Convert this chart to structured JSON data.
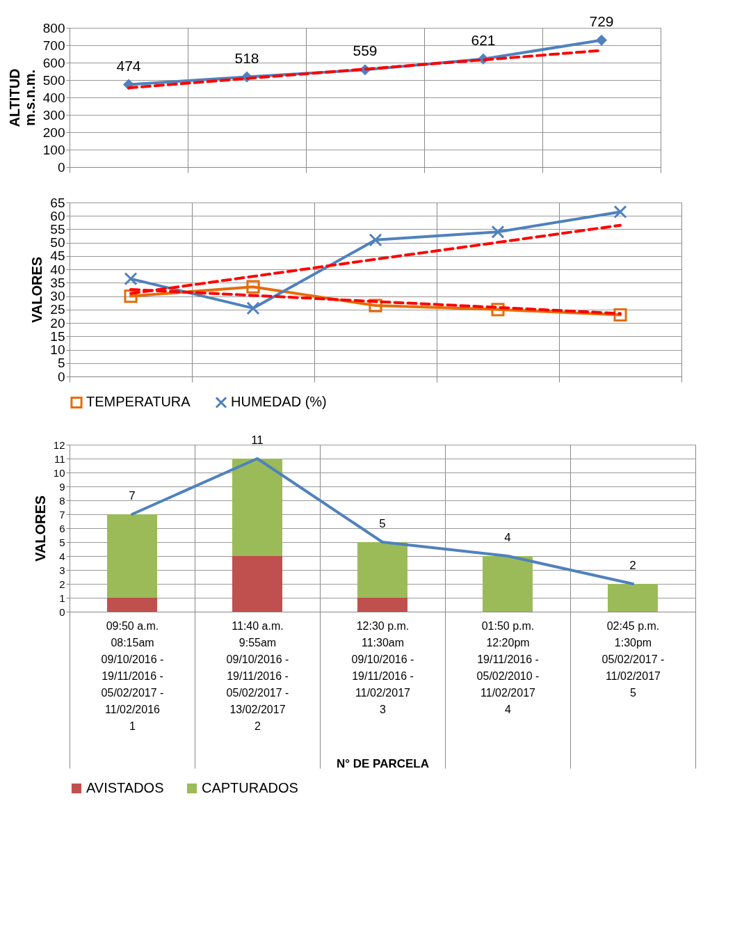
{
  "chart_data": [
    {
      "type": "line",
      "ylabel": "ALTITUD\nm.s.n.m.",
      "categories": [
        null,
        null,
        null,
        null,
        null
      ],
      "ylim": [
        0,
        800
      ],
      "yticks": [
        0,
        100,
        200,
        300,
        400,
        500,
        600,
        700,
        800
      ],
      "grid": true,
      "series": [
        {
          "color": "#4f81bd",
          "values": [
            474,
            518,
            559,
            621,
            729
          ],
          "marker": "diamond",
          "data_labels": true
        },
        {
          "color": "#ff0000",
          "values": [
            455,
            509,
            563,
            616,
            670
          ],
          "marker": "none",
          "line_style": "dashed"
        }
      ]
    },
    {
      "type": "line",
      "ylabel": "VALORES",
      "categories": [
        null,
        null,
        null,
        null,
        null
      ],
      "ylim": [
        0,
        65
      ],
      "yticks": [
        0,
        5,
        10,
        15,
        20,
        25,
        30,
        35,
        40,
        45,
        50,
        55,
        60,
        65
      ],
      "grid": true,
      "legend": "bottom",
      "series": [
        {
          "name": "TEMPERATURA",
          "color": "#e46c0a",
          "values": [
            30,
            33.5,
            26.5,
            25,
            23
          ],
          "marker": "square"
        },
        {
          "name": "HUMEDAD (%)",
          "color": "#4f81bd",
          "values": [
            36.5,
            25.5,
            51,
            54,
            61.5
          ],
          "marker": "cross"
        },
        {
          "color": "#ff0000",
          "values": [
            31,
            37.4,
            43.8,
            50.1,
            56.5
          ],
          "marker": "none",
          "line_style": "dashed"
        },
        {
          "color": "#ff0000",
          "values": [
            32.5,
            30.3,
            28,
            25.8,
            23.5
          ],
          "marker": "none",
          "line_style": "dashed"
        }
      ]
    },
    {
      "type": "bar",
      "stacked": true,
      "ylabel": "VALORES",
      "xlabel": "N° DE PARCELA",
      "categories": [
        "09:50 a.m.\n08:15am\n09/10/2016 -\n19/11/2016 -\n05/02/2017 -\n11/02/2016\n1",
        "11:40 a.m.\n9:55am\n09/10/2016 -\n19/11/2016 -\n05/02/2017 -\n13/02/2017\n2",
        "12:30 p.m.\n11:30am\n09/10/2016 -\n19/11/2016 -\n11/02/2017\n\n3",
        "01:50 p.m.\n12:20pm\n19/11/2016 -\n05/02/2010 -\n11/02/2017\n\n4",
        "02:45 p.m.\n1:30pm\n05/02/2017 -\n11/02/2017\n\n\n5"
      ],
      "ylim": [
        0,
        12
      ],
      "yticks": [
        0,
        1,
        2,
        3,
        4,
        5,
        6,
        7,
        8,
        9,
        10,
        11,
        12
      ],
      "grid": true,
      "legend": "bottom",
      "series": [
        {
          "name": "AVISTADOS",
          "color": "#c0504d",
          "values": [
            1,
            4,
            1,
            0,
            0
          ]
        },
        {
          "name": "CAPTURADOS",
          "color": "#9bbb59",
          "values": [
            6,
            7,
            4,
            4,
            2
          ]
        },
        {
          "type": "line",
          "color": "#4f81bd",
          "values": [
            7,
            11,
            5,
            4,
            2
          ],
          "marker": "none",
          "data_labels": true
        }
      ]
    }
  ]
}
